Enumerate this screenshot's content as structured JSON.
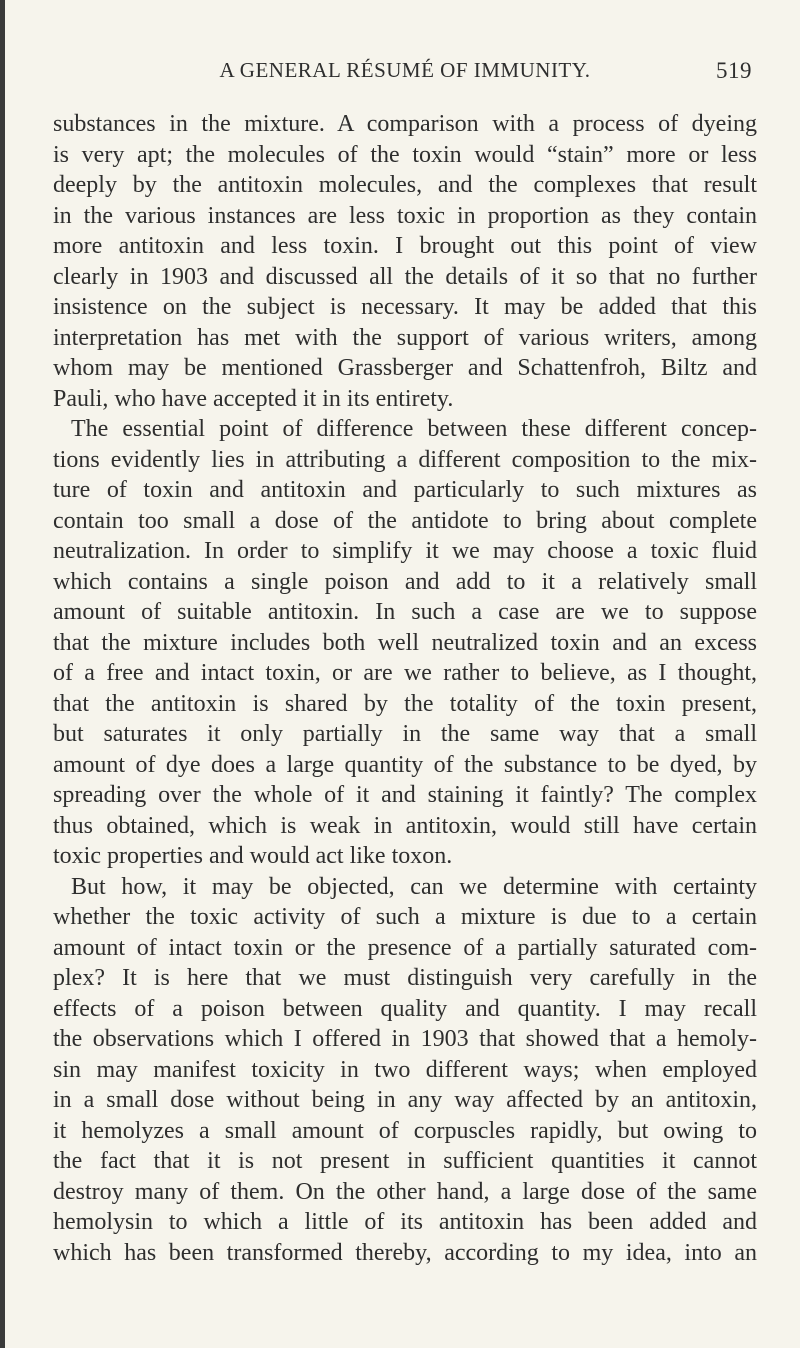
{
  "header": {
    "title": "A GENERAL RÉSUMÉ OF IMMUNITY.",
    "page_number": "519"
  },
  "paragraphs": [
    {
      "lines": [
        "substances in the mixture. A comparison with a process of dyeing",
        "is very apt; the molecules of the toxin would “stain” more or less",
        "deeply by the antitoxin molecules, and the complexes that result",
        "in the various instances are less toxic in proportion as they contain",
        "more antitoxin and less toxin. I brought out this point of view",
        "clearly in 1903 and discussed all the details of it so that no further",
        "insistence on the subject is necessary. It may be added that this",
        "interpretation has met with the support of various writers, among",
        "whom may be mentioned Grassberger and Schattenfroh, Biltz and",
        "Pauli, who have accepted it in its entirety."
      ]
    },
    {
      "lines": [
        "The essential point of difference between these different concep-",
        "tions evidently lies in attributing a different composition to the mix-",
        "ture of toxin and antitoxin and particularly to such mixtures as",
        "contain too small a dose of the antidote to bring about complete",
        "neutralization. In order to simplify it we may choose a toxic fluid",
        "which contains a single poison and add to it a relatively small",
        "amount of suitable antitoxin. In such a case are we to suppose",
        "that the mixture includes both well neutralized toxin and an excess",
        "of a free and intact toxin, or are we rather to believe, as I thought,",
        "that the antitoxin is shared by the totality of the toxin present,",
        "but saturates it only partially in the same way that a small",
        "amount of dye does a large quantity of the substance to be dyed, by",
        "spreading over the whole of it and staining it faintly? The complex",
        "thus obtained, which is weak in antitoxin, would still have certain",
        "toxic properties and would act like toxon."
      ]
    },
    {
      "lines": [
        "But how, it may be objected, can we determine with certainty",
        "whether the toxic activity of such a mixture is due to a certain",
        "amount of intact toxin or the presence of a partially saturated com-",
        "plex? It is here that we must distinguish very carefully in the",
        "effects of a poison between quality and quantity. I may recall",
        "the observations which I offered in 1903 that showed that a hemoly-",
        "sin may manifest toxicity in two different ways; when employed",
        "in a small dose without being in any way affected by an antitoxin,",
        "it hemolyzes a small amount of corpuscles rapidly, but owing to",
        "the fact that it is not present in sufficient quantities it cannot",
        "destroy many of them. On the other hand, a large dose of the same",
        "hemolysin to which a little of its antitoxin has been added and",
        "which has been transformed thereby, according to my idea, into an"
      ]
    }
  ]
}
